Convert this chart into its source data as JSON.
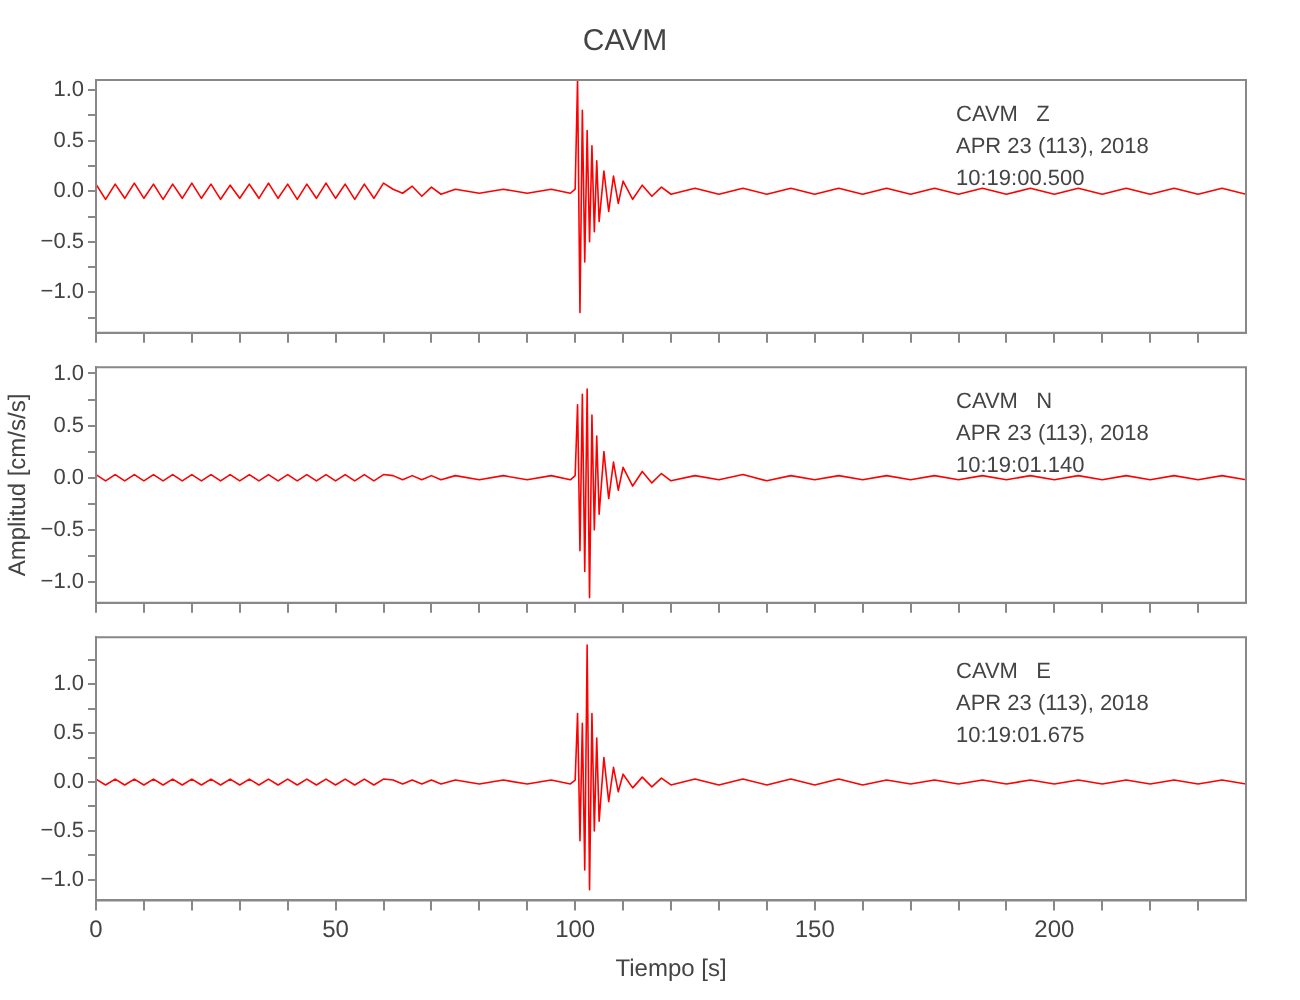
{
  "chart_data": [
    {
      "type": "line",
      "title": "CAVM",
      "annotations": [
        "CAVM   Z",
        "APR 23 (113), 2018",
        "10:19:00.500"
      ],
      "x": [
        0,
        2,
        4,
        6,
        8,
        10,
        12,
        14,
        16,
        18,
        20,
        22,
        24,
        26,
        28,
        30,
        32,
        34,
        36,
        38,
        40,
        42,
        44,
        46,
        48,
        50,
        52,
        54,
        56,
        58,
        60,
        62,
        64,
        66,
        68,
        70,
        72,
        75,
        80,
        85,
        90,
        95,
        99,
        100,
        100.5,
        101,
        101.5,
        102,
        102.5,
        103,
        103.5,
        104,
        104.5,
        105,
        106,
        107,
        108,
        109,
        110,
        112,
        114,
        116,
        118,
        120,
        125,
        130,
        135,
        140,
        145,
        150,
        155,
        160,
        165,
        170,
        175,
        180,
        185,
        190,
        195,
        200,
        205,
        210,
        215,
        220,
        225,
        230,
        235,
        240
      ],
      "series": [
        {
          "color": "#ff0000",
          "values": [
            0.07,
            -0.08,
            0.07,
            -0.07,
            0.08,
            -0.07,
            0.07,
            -0.08,
            0.07,
            -0.07,
            0.08,
            -0.07,
            0.07,
            -0.08,
            0.06,
            -0.07,
            0.07,
            -0.07,
            0.08,
            -0.07,
            0.07,
            -0.08,
            0.07,
            -0.07,
            0.08,
            -0.07,
            0.07,
            -0.08,
            0.07,
            -0.07,
            0.08,
            0.02,
            -0.02,
            0.05,
            -0.05,
            0.04,
            -0.03,
            0.02,
            -0.02,
            0.02,
            -0.02,
            0.02,
            -0.02,
            0.02,
            1.1,
            -1.2,
            0.8,
            -0.7,
            0.6,
            -0.5,
            0.45,
            -0.4,
            0.3,
            -0.3,
            0.2,
            -0.2,
            0.15,
            -0.12,
            0.1,
            -0.08,
            0.06,
            -0.05,
            0.04,
            -0.03,
            0.03,
            -0.03,
            0.03,
            -0.03,
            0.03,
            -0.03,
            0.03,
            -0.03,
            0.03,
            -0.03,
            0.03,
            -0.03,
            0.03,
            -0.03,
            0.03,
            -0.03,
            0.03,
            -0.03,
            0.03,
            -0.03,
            0.03,
            -0.03,
            0.03,
            -0.03
          ]
        }
      ],
      "xlim": [
        0,
        240
      ],
      "xticks": [
        0,
        {
          "value": 10,
          "label": null
        },
        {
          "value": 20,
          "label": null
        },
        {
          "value": 30,
          "label": null
        },
        {
          "value": 40,
          "label": null
        },
        50,
        {
          "value": 60,
          "label": null
        },
        {
          "value": 70,
          "label": null
        },
        {
          "value": 80,
          "label": null
        },
        {
          "value": 90,
          "label": null
        },
        100,
        {
          "value": 110,
          "label": null
        },
        {
          "value": 120,
          "label": null
        },
        {
          "value": 130,
          "label": null
        },
        {
          "value": 140,
          "label": null
        },
        150,
        {
          "value": 160,
          "label": null
        },
        {
          "value": 170,
          "label": null
        },
        {
          "value": 180,
          "label": null
        },
        {
          "value": 190,
          "label": null
        },
        200,
        {
          "value": 210,
          "label": null
        },
        {
          "value": 220,
          "label": null
        },
        {
          "value": 230,
          "label": null
        }
      ],
      "ylim": [
        -1.4,
        1.1
      ],
      "yticks": [
        {
          "value": -1.25,
          "label": null
        },
        {
          "value": -1,
          "label": "−1.0"
        },
        {
          "value": -0.75,
          "label": null
        },
        {
          "value": -0.5,
          "label": "−0.5"
        },
        {
          "value": -0.25,
          "label": null
        },
        {
          "value": 0,
          "label": "0.0"
        },
        {
          "value": 0.25,
          "label": null
        },
        {
          "value": 0.5,
          "label": "0.5"
        },
        {
          "value": 0.75,
          "label": null
        },
        {
          "value": 1,
          "label": "1.0"
        }
      ],
      "tick_labels": "y"
    },
    {
      "type": "line",
      "ylabel": "Amplitud [cm/s/s]",
      "annotations": [
        "CAVM   N",
        "APR 23 (113), 2018",
        "10:19:01.140"
      ],
      "x": [
        0,
        2,
        4,
        6,
        8,
        10,
        12,
        14,
        16,
        18,
        20,
        22,
        24,
        26,
        28,
        30,
        32,
        34,
        36,
        38,
        40,
        42,
        44,
        46,
        48,
        50,
        52,
        54,
        56,
        58,
        60,
        62,
        64,
        66,
        68,
        70,
        72,
        75,
        80,
        85,
        90,
        95,
        99,
        100,
        100.5,
        101,
        101.5,
        102,
        102.5,
        103,
        103.5,
        104,
        104.5,
        105,
        106,
        107,
        108,
        109,
        110,
        112,
        114,
        116,
        118,
        120,
        125,
        130,
        135,
        140,
        145,
        150,
        155,
        160,
        165,
        170,
        175,
        180,
        185,
        190,
        195,
        200,
        205,
        210,
        215,
        220,
        225,
        230,
        235,
        240
      ],
      "series": [
        {
          "color": "#ff0000",
          "values": [
            0.03,
            -0.03,
            0.03,
            -0.03,
            0.03,
            -0.03,
            0.03,
            -0.03,
            0.03,
            -0.03,
            0.03,
            -0.03,
            0.03,
            -0.03,
            0.03,
            -0.03,
            0.03,
            -0.03,
            0.03,
            -0.03,
            0.03,
            -0.03,
            0.03,
            -0.03,
            0.03,
            -0.03,
            0.03,
            -0.03,
            0.03,
            -0.03,
            0.03,
            0.02,
            -0.02,
            0.02,
            -0.02,
            0.02,
            -0.02,
            0.02,
            -0.02,
            0.02,
            -0.02,
            0.02,
            -0.02,
            0.02,
            0.7,
            -0.7,
            0.8,
            -0.9,
            0.85,
            -1.15,
            0.6,
            -0.5,
            0.4,
            -0.35,
            0.25,
            -0.2,
            0.15,
            -0.12,
            0.1,
            -0.08,
            0.06,
            -0.05,
            0.04,
            -0.03,
            0.02,
            -0.02,
            0.03,
            -0.03,
            0.02,
            -0.02,
            0.02,
            -0.02,
            0.02,
            -0.02,
            0.02,
            -0.02,
            0.02,
            -0.02,
            0.02,
            -0.02,
            0.02,
            -0.02,
            0.02,
            -0.02,
            0.02,
            -0.02,
            0.02,
            -0.02
          ]
        }
      ],
      "xlim": [
        0,
        240
      ],
      "xticks": [
        0,
        {
          "value": 10,
          "label": null
        },
        {
          "value": 20,
          "label": null
        },
        {
          "value": 30,
          "label": null
        },
        {
          "value": 40,
          "label": null
        },
        50,
        {
          "value": 60,
          "label": null
        },
        {
          "value": 70,
          "label": null
        },
        {
          "value": 80,
          "label": null
        },
        {
          "value": 90,
          "label": null
        },
        100,
        {
          "value": 110,
          "label": null
        },
        {
          "value": 120,
          "label": null
        },
        {
          "value": 130,
          "label": null
        },
        {
          "value": 140,
          "label": null
        },
        150,
        {
          "value": 160,
          "label": null
        },
        {
          "value": 170,
          "label": null
        },
        {
          "value": 180,
          "label": null
        },
        {
          "value": 190,
          "label": null
        },
        200,
        {
          "value": 210,
          "label": null
        },
        {
          "value": 220,
          "label": null
        },
        {
          "value": 230,
          "label": null
        }
      ],
      "ylim": [
        -1.2,
        1.06
      ],
      "yticks": [
        {
          "value": -1,
          "label": "−1.0"
        },
        {
          "value": -0.75,
          "label": null
        },
        {
          "value": -0.5,
          "label": "−0.5"
        },
        {
          "value": -0.25,
          "label": null
        },
        {
          "value": 0,
          "label": "0.0"
        },
        {
          "value": 0.25,
          "label": null
        },
        {
          "value": 0.5,
          "label": "0.5"
        },
        {
          "value": 0.75,
          "label": null
        },
        {
          "value": 1,
          "label": "1.0"
        }
      ],
      "tick_labels": "y"
    },
    {
      "type": "line",
      "xlabel": "Tiempo [s]",
      "annotations": [
        "CAVM   E",
        "APR 23 (113), 2018",
        "10:19:01.675"
      ],
      "x": [
        0,
        2,
        4,
        6,
        8,
        10,
        12,
        14,
        16,
        18,
        20,
        22,
        24,
        26,
        28,
        30,
        32,
        34,
        36,
        38,
        40,
        42,
        44,
        46,
        48,
        50,
        52,
        54,
        56,
        58,
        60,
        62,
        64,
        66,
        68,
        70,
        72,
        75,
        80,
        85,
        90,
        95,
        99,
        100,
        100.5,
        101,
        101.5,
        102,
        102.5,
        103,
        103.5,
        104,
        104.5,
        105,
        106,
        107,
        108,
        109,
        110,
        112,
        114,
        116,
        118,
        120,
        125,
        130,
        135,
        140,
        145,
        150,
        155,
        160,
        165,
        170,
        175,
        180,
        185,
        190,
        195,
        200,
        205,
        210,
        215,
        220,
        225,
        230,
        235,
        240
      ],
      "series": [
        {
          "color": "#ff0000",
          "values": [
            0.03,
            -0.03,
            0.03,
            -0.03,
            0.03,
            -0.03,
            0.03,
            -0.03,
            0.03,
            -0.03,
            0.03,
            -0.03,
            0.03,
            -0.03,
            0.03,
            -0.03,
            0.03,
            -0.03,
            0.03,
            -0.03,
            0.03,
            -0.03,
            0.03,
            -0.03,
            0.03,
            -0.03,
            0.03,
            -0.03,
            0.03,
            -0.03,
            0.03,
            0.02,
            -0.02,
            0.02,
            -0.02,
            0.02,
            -0.02,
            0.02,
            -0.02,
            0.02,
            -0.02,
            0.02,
            -0.02,
            0.02,
            0.7,
            -0.6,
            0.6,
            -0.9,
            1.4,
            -1.1,
            0.7,
            -0.5,
            0.45,
            -0.4,
            0.25,
            -0.2,
            0.15,
            -0.1,
            0.08,
            -0.06,
            0.05,
            -0.05,
            0.04,
            -0.03,
            0.03,
            -0.03,
            0.03,
            -0.03,
            0.03,
            -0.03,
            0.03,
            -0.03,
            0.02,
            -0.02,
            0.02,
            -0.02,
            0.02,
            -0.02,
            0.02,
            -0.02,
            0.02,
            -0.02,
            0.02,
            -0.02,
            0.02,
            -0.02,
            0.02,
            -0.02
          ]
        }
      ],
      "xlim": [
        0,
        240
      ],
      "xticks": [
        0,
        {
          "value": 10,
          "label": null
        },
        {
          "value": 20,
          "label": null
        },
        {
          "value": 30,
          "label": null
        },
        {
          "value": 40,
          "label": null
        },
        50,
        {
          "value": 60,
          "label": null
        },
        {
          "value": 70,
          "label": null
        },
        {
          "value": 80,
          "label": null
        },
        {
          "value": 90,
          "label": null
        },
        100,
        {
          "value": 110,
          "label": null
        },
        {
          "value": 120,
          "label": null
        },
        {
          "value": 130,
          "label": null
        },
        {
          "value": 140,
          "label": null
        },
        150,
        {
          "value": 160,
          "label": null
        },
        {
          "value": 170,
          "label": null
        },
        {
          "value": 180,
          "label": null
        },
        {
          "value": 190,
          "label": null
        },
        200,
        {
          "value": 210,
          "label": null
        },
        {
          "value": 220,
          "label": null
        },
        {
          "value": 230,
          "label": null
        }
      ],
      "ylim": [
        -1.21,
        1.48
      ],
      "yticks": [
        {
          "value": -1,
          "label": "−1.0"
        },
        {
          "value": -0.75,
          "label": null
        },
        {
          "value": -0.5,
          "label": "−0.5"
        },
        {
          "value": -0.25,
          "label": null
        },
        {
          "value": 0,
          "label": "0.0"
        },
        {
          "value": 0.25,
          "label": null
        },
        {
          "value": 0.5,
          "label": "0.5"
        },
        {
          "value": 0.75,
          "label": null
        },
        {
          "value": 1,
          "label": "1.0"
        },
        {
          "value": 1.25,
          "label": null
        }
      ]
    }
  ]
}
